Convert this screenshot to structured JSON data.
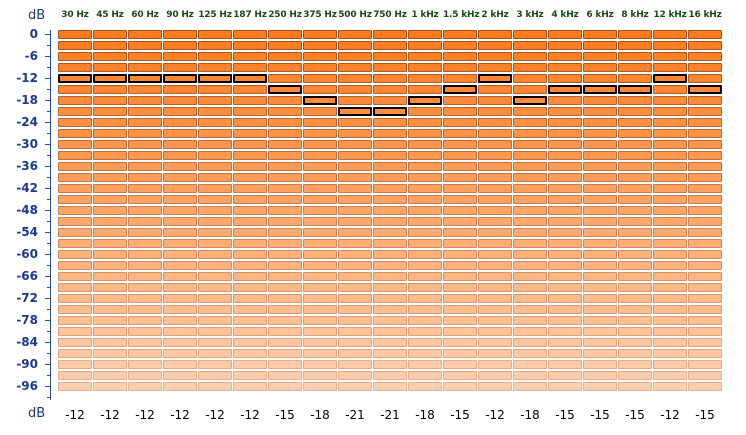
{
  "unit_label": "dB",
  "scale_ticks": [
    "0",
    "-6",
    "-12",
    "-18",
    "-24",
    "-30",
    "-36",
    "-42",
    "-48",
    "-54",
    "-60",
    "-66",
    "-72",
    "-78",
    "-84",
    "-90",
    "-96"
  ],
  "bands": [
    {
      "label": "30 Hz",
      "gain": "-12"
    },
    {
      "label": "45 Hz",
      "gain": "-12"
    },
    {
      "label": "60 Hz",
      "gain": "-12"
    },
    {
      "label": "90 Hz",
      "gain": "-12"
    },
    {
      "label": "125 Hz",
      "gain": "-12"
    },
    {
      "label": "187 Hz",
      "gain": "-12"
    },
    {
      "label": "250 Hz",
      "gain": "-15"
    },
    {
      "label": "375 Hz",
      "gain": "-18"
    },
    {
      "label": "500 Hz",
      "gain": "-21"
    },
    {
      "label": "750 Hz",
      "gain": "-21"
    },
    {
      "label": "1 kHz",
      "gain": "-18"
    },
    {
      "label": "1.5 kHz",
      "gain": "-15"
    },
    {
      "label": "2 kHz",
      "gain": "-12"
    },
    {
      "label": "3 kHz",
      "gain": "-18"
    },
    {
      "label": "4 kHz",
      "gain": "-15"
    },
    {
      "label": "6 kHz",
      "gain": "-15"
    },
    {
      "label": "8 kHz",
      "gain": "-15"
    },
    {
      "label": "12 kHz",
      "gain": "-12"
    },
    {
      "label": "16 kHz",
      "gain": "-15"
    }
  ],
  "colors": {
    "cell_top": "#ff7a1c",
    "cell_bottom": "#ffd0b0",
    "cell_border": "#a0521a",
    "selected_border": "#000000",
    "scale_text": "#1a3a8a",
    "freq_text": "#1a4a14"
  }
}
